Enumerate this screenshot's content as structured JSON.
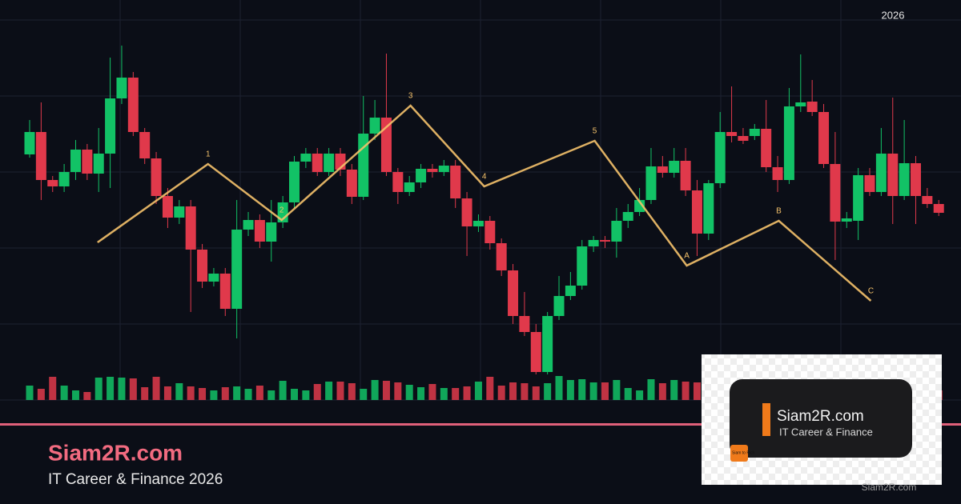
{
  "chart_data": {
    "type": "candlestick",
    "title": "2026",
    "ylim": [
      0,
      500
    ],
    "colors": {
      "up": "#12c266",
      "down": "#e0394b",
      "wave": "#f5c26b"
    },
    "open": [
      307,
      335,
      275,
      267,
      285,
      313,
      283,
      308,
      377,
      403,
      335,
      302,
      255,
      228,
      242,
      188,
      148,
      158,
      114,
      213,
      225,
      198,
      222,
      247,
      298,
      308,
      285,
      308,
      288,
      254,
      333,
      353,
      285,
      260,
      272,
      289,
      285,
      293,
      252,
      217,
      224,
      196,
      162,
      105,
      85,
      35,
      105,
      130,
      143,
      192,
      200,
      198,
      224,
      235,
      250,
      292,
      284,
      299,
      262,
      208,
      271,
      335,
      330,
      330,
      339,
      291,
      275,
      367,
      373,
      360,
      295,
      223,
      224,
      281,
      260,
      308,
      255,
      296,
      255,
      245
    ],
    "high": [
      350,
      372,
      280,
      295,
      325,
      320,
      340,
      428,
      443,
      410,
      340,
      310,
      265,
      250,
      250,
      195,
      165,
      165,
      250,
      235,
      232,
      250,
      255,
      305,
      315,
      315,
      315,
      315,
      295,
      380,
      375,
      433,
      290,
      280,
      295,
      295,
      300,
      300,
      260,
      232,
      230,
      202,
      170,
      135,
      95,
      110,
      155,
      160,
      200,
      205,
      205,
      240,
      245,
      265,
      315,
      305,
      315,
      315,
      275,
      275,
      360,
      392,
      340,
      345,
      375,
      305,
      390,
      432,
      400,
      370,
      335,
      235,
      290,
      290,
      340,
      378,
      350,
      305,
      265,
      250
    ],
    "low": [
      303,
      250,
      260,
      260,
      275,
      275,
      260,
      265,
      370,
      330,
      295,
      245,
      215,
      220,
      110,
      140,
      142,
      105,
      77,
      205,
      190,
      173,
      215,
      240,
      290,
      280,
      280,
      280,
      245,
      250,
      325,
      280,
      245,
      255,
      265,
      278,
      280,
      240,
      180,
      210,
      188,
      155,
      95,
      80,
      32,
      32,
      100,
      125,
      138,
      185,
      190,
      178,
      215,
      230,
      245,
      278,
      278,
      255,
      180,
      200,
      265,
      322,
      320,
      325,
      285,
      260,
      270,
      360,
      355,
      290,
      175,
      215,
      200,
      255,
      255,
      220,
      250,
      220,
      240,
      230
    ],
    "close": [
      335,
      275,
      267,
      285,
      313,
      283,
      308,
      377,
      403,
      335,
      302,
      255,
      228,
      242,
      188,
      148,
      158,
      114,
      213,
      225,
      198,
      222,
      247,
      298,
      308,
      285,
      308,
      288,
      254,
      333,
      353,
      285,
      260,
      272,
      289,
      285,
      293,
      252,
      217,
      224,
      196,
      162,
      105,
      85,
      35,
      105,
      130,
      143,
      192,
      200,
      198,
      224,
      235,
      250,
      292,
      284,
      299,
      262,
      208,
      271,
      335,
      330,
      324,
      339,
      291,
      275,
      367,
      372,
      360,
      295,
      223,
      227,
      281,
      260,
      308,
      255,
      296,
      255,
      245,
      234
    ],
    "volume": [
      18,
      14,
      29,
      18,
      12,
      10,
      28,
      29,
      28,
      27,
      16,
      29,
      17,
      21,
      17,
      15,
      12,
      16,
      17,
      14,
      18,
      12,
      24,
      14,
      12,
      20,
      23,
      23,
      21,
      14,
      25,
      24,
      22,
      19,
      16,
      20,
      15,
      15,
      17,
      23,
      29,
      18,
      22,
      21,
      17,
      21,
      30,
      25,
      26,
      22,
      22,
      25,
      15,
      12,
      26,
      21,
      25,
      23,
      22,
      18,
      28,
      16,
      22,
      19,
      24,
      20,
      26,
      18,
      21,
      23,
      17,
      20,
      24,
      15,
      19,
      22,
      18,
      21,
      16,
      12
    ],
    "wave": {
      "x": [
        5.9,
        15.5,
        21.9,
        33.1,
        39.5,
        49.1,
        57.1,
        65.1,
        73.1
      ],
      "y": [
        197,
        295,
        225,
        368,
        267,
        324,
        168,
        224,
        124
      ],
      "labels": [
        null,
        "1",
        "2",
        "3",
        "4",
        "5",
        "A",
        "B",
        "C"
      ]
    }
  },
  "brand": {
    "title": "Siam2R.com",
    "subtitle": "IT Career & Finance 2026"
  },
  "logo": {
    "title": "Siam2R.com",
    "subtitle": "IT Career & Finance",
    "badge": "Siam to Rich",
    "watermark": "Siam2R.com"
  }
}
